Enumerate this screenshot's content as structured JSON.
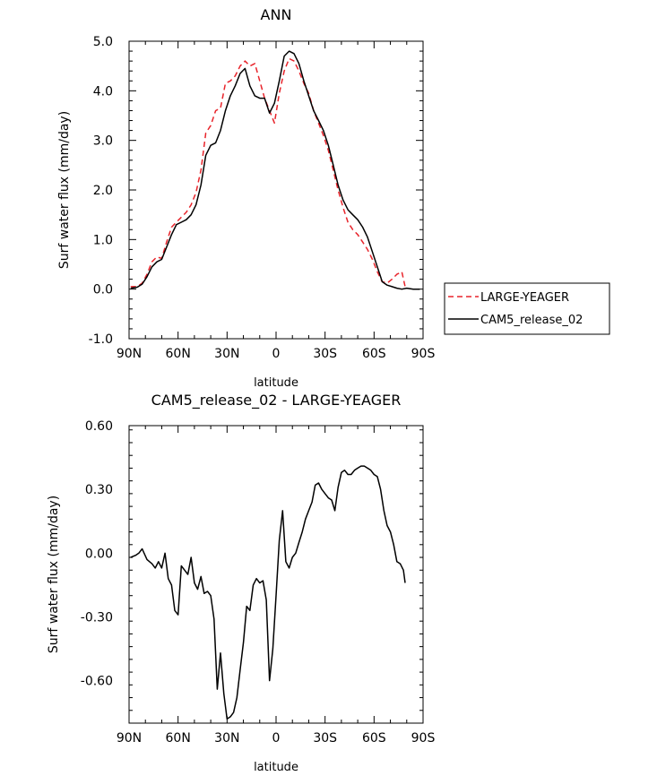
{
  "chart_data": [
    {
      "type": "line",
      "title": "ANN",
      "xlabel": "latitude",
      "ylabel": "Surf water flux (mm/day)",
      "xlim": [
        90,
        -90
      ],
      "ylim": [
        -1.0,
        5.0
      ],
      "x_ticks": [
        90,
        60,
        30,
        0,
        -30,
        -60,
        -90
      ],
      "x_tick_labels": [
        "90N",
        "60N",
        "30N",
        "0",
        "30S",
        "60S",
        "90S"
      ],
      "y_ticks": [
        -1.0,
        0.0,
        1.0,
        2.0,
        3.0,
        4.0,
        5.0
      ],
      "y_tick_labels": [
        "-1.0",
        "0.0",
        "1.0",
        "2.0",
        "3.0",
        "4.0",
        "5.0"
      ],
      "legend": [
        "LARGE-YEAGER",
        "CAM5_release_02"
      ],
      "series": [
        {
          "name": "LARGE-YEAGER",
          "color": "#e8242b",
          "dash": "dashed",
          "x": [
            89,
            85,
            82,
            79,
            76,
            73,
            70,
            67,
            64,
            61,
            58,
            55,
            52,
            49,
            46,
            43,
            40,
            37,
            34,
            31,
            28,
            25,
            22,
            19,
            16,
            13,
            10,
            7,
            4,
            1,
            -2,
            -5,
            -8,
            -11,
            -14,
            -17,
            -20,
            -23,
            -26,
            -29,
            -32,
            -35,
            -38,
            -41,
            -44,
            -47,
            -50,
            -53,
            -56,
            -59,
            -62,
            -65,
            -68,
            -71,
            -74,
            -77,
            -79
          ],
          "values": [
            0.05,
            0.05,
            0.12,
            0.3,
            0.55,
            0.65,
            0.62,
            0.95,
            1.25,
            1.35,
            1.45,
            1.55,
            1.7,
            1.95,
            2.4,
            3.15,
            3.3,
            3.6,
            3.65,
            4.15,
            4.2,
            4.3,
            4.5,
            4.6,
            4.5,
            4.55,
            4.2,
            3.85,
            3.6,
            3.35,
            3.95,
            4.4,
            4.65,
            4.6,
            4.4,
            4.15,
            3.95,
            3.6,
            3.35,
            3.1,
            2.8,
            2.4,
            2.0,
            1.65,
            1.35,
            1.2,
            1.1,
            0.95,
            0.8,
            0.6,
            0.35,
            0.15,
            0.12,
            0.2,
            0.3,
            0.35,
            0.05
          ]
        },
        {
          "name": "CAM5_release_02",
          "color": "#000000",
          "dash": "solid",
          "x": [
            89,
            85,
            82,
            79,
            76,
            73,
            70,
            67,
            64,
            61,
            58,
            55,
            52,
            49,
            46,
            43,
            40,
            37,
            34,
            31,
            28,
            25,
            22,
            19,
            16,
            13,
            10,
            7,
            4,
            1,
            -2,
            -5,
            -8,
            -11,
            -14,
            -17,
            -20,
            -23,
            -26,
            -29,
            -32,
            -35,
            -38,
            -41,
            -44,
            -47,
            -50,
            -53,
            -56,
            -59,
            -62,
            -65,
            -68,
            -71,
            -74,
            -77,
            -80,
            -84,
            -88
          ],
          "values": [
            0.02,
            0.04,
            0.1,
            0.25,
            0.45,
            0.55,
            0.6,
            0.85,
            1.1,
            1.3,
            1.35,
            1.4,
            1.5,
            1.7,
            2.1,
            2.7,
            2.9,
            2.95,
            3.2,
            3.6,
            3.9,
            4.1,
            4.35,
            4.45,
            4.1,
            3.9,
            3.85,
            3.85,
            3.55,
            3.75,
            4.2,
            4.7,
            4.8,
            4.75,
            4.55,
            4.2,
            3.9,
            3.6,
            3.4,
            3.2,
            2.9,
            2.5,
            2.1,
            1.8,
            1.6,
            1.5,
            1.4,
            1.25,
            1.05,
            0.75,
            0.45,
            0.15,
            0.08,
            0.05,
            0.02,
            0.0,
            0.02,
            0.0,
            0.0
          ]
        }
      ]
    },
    {
      "type": "line",
      "title": "CAM5_release_02 - LARGE-YEAGER",
      "xlabel": "latitude",
      "ylabel": "Surf water flux (mm/day)",
      "xlim": [
        90,
        -90
      ],
      "ylim": [
        -0.8,
        0.6
      ],
      "x_ticks": [
        90,
        60,
        30,
        0,
        -30,
        -60,
        -90
      ],
      "x_tick_labels": [
        "90N",
        "60N",
        "30N",
        "0",
        "30S",
        "60S",
        "90S"
      ],
      "y_ticks": [
        -0.6,
        -0.3,
        0.0,
        0.3,
        0.6
      ],
      "y_tick_labels": [
        "-0.60",
        "-0.30",
        "0.00",
        "0.30",
        "0.60"
      ],
      "series": [
        {
          "name": "CAM5_release_02 - LARGE-YEAGER",
          "color": "#000000",
          "dash": "solid",
          "x": [
            89,
            86,
            84,
            82,
            79,
            76,
            74,
            72,
            70,
            68,
            66,
            64,
            62,
            60,
            58,
            56,
            54,
            52,
            50,
            48,
            46,
            44,
            42,
            40,
            38,
            36,
            34,
            32,
            30,
            28,
            26,
            24,
            22,
            20,
            18,
            16,
            14,
            12,
            10,
            8,
            6,
            4,
            2,
            0,
            -2,
            -4,
            -6,
            -8,
            -10,
            -12,
            -14,
            -16,
            -18,
            -20,
            -22,
            -24,
            -26,
            -28,
            -30,
            -32,
            -34,
            -36,
            -38,
            -40,
            -42,
            -44,
            -46,
            -48,
            -50,
            -52,
            -54,
            -56,
            -58,
            -60,
            -62,
            -64,
            -66,
            -68,
            -70,
            -72,
            -74,
            -76,
            -78,
            -79
          ],
          "values": [
            -0.02,
            -0.01,
            0.0,
            0.02,
            -0.03,
            -0.05,
            -0.07,
            -0.04,
            -0.07,
            0.0,
            -0.12,
            -0.15,
            -0.27,
            -0.29,
            -0.06,
            -0.08,
            -0.1,
            -0.02,
            -0.14,
            -0.17,
            -0.11,
            -0.19,
            -0.18,
            -0.2,
            -0.31,
            -0.64,
            -0.47,
            -0.66,
            -0.78,
            -0.77,
            -0.75,
            -0.68,
            -0.55,
            -0.42,
            -0.25,
            -0.27,
            -0.15,
            -0.12,
            -0.14,
            -0.13,
            -0.22,
            -0.6,
            -0.45,
            -0.2,
            0.06,
            0.2,
            -0.04,
            -0.07,
            -0.02,
            0.0,
            0.05,
            0.1,
            0.16,
            0.2,
            0.24,
            0.32,
            0.33,
            0.3,
            0.28,
            0.26,
            0.25,
            0.2,
            0.31,
            0.38,
            0.39,
            0.37,
            0.37,
            0.39,
            0.4,
            0.41,
            0.41,
            0.4,
            0.39,
            0.37,
            0.36,
            0.3,
            0.2,
            0.13,
            0.1,
            0.04,
            -0.04,
            -0.05,
            -0.08,
            -0.14
          ]
        }
      ]
    }
  ]
}
